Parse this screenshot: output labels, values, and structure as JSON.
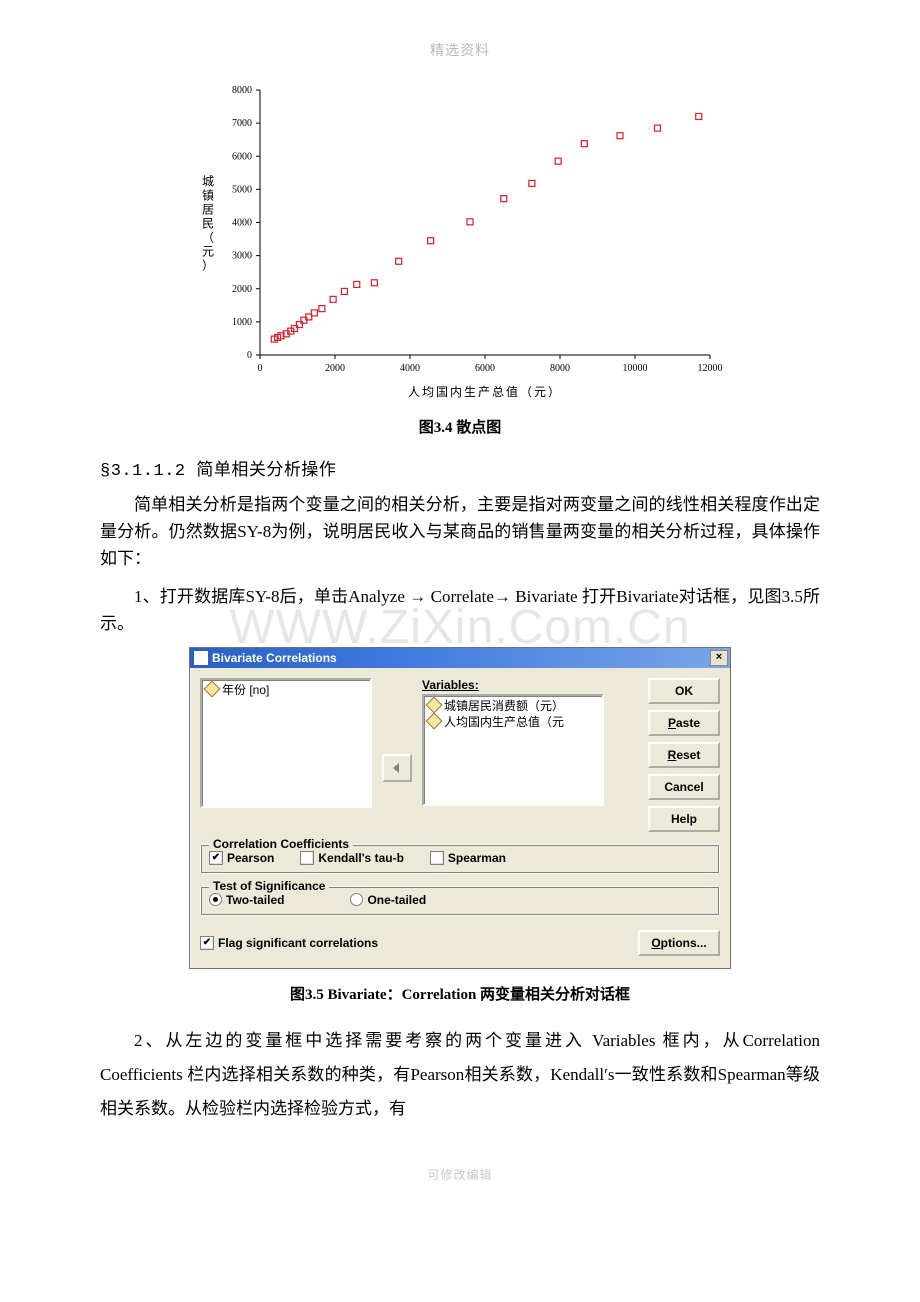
{
  "header": "精选资料",
  "footer": "可修改编辑",
  "watermark": "WWW.ZiXin.Com.Cn",
  "chart": {
    "type": "scatter",
    "xlabel": "人均国内生产总值（元）",
    "ylabel": "城镇居民（元）",
    "xlim": [
      0,
      12000
    ],
    "ylim": [
      0,
      8000
    ],
    "xticks": [
      0,
      2000,
      4000,
      6000,
      8000,
      10000,
      12000
    ],
    "yticks": [
      0,
      1000,
      2000,
      3000,
      4000,
      5000,
      6000,
      7000,
      8000
    ],
    "tick_fontsize": 10,
    "label_fontsize": 12,
    "marker": "square-open",
    "marker_color": "#d6202a",
    "marker_size": 6,
    "axis_color": "#000000",
    "background": "#ffffff",
    "points": [
      [
        380,
        480
      ],
      [
        470,
        530
      ],
      [
        560,
        580
      ],
      [
        700,
        640
      ],
      [
        820,
        720
      ],
      [
        920,
        800
      ],
      [
        1050,
        920
      ],
      [
        1170,
        1050
      ],
      [
        1300,
        1150
      ],
      [
        1450,
        1270
      ],
      [
        1650,
        1400
      ],
      [
        1950,
        1680
      ],
      [
        2250,
        1920
      ],
      [
        2580,
        2130
      ],
      [
        3050,
        2180
      ],
      [
        3700,
        2830
      ],
      [
        4550,
        3450
      ],
      [
        5600,
        4020
      ],
      [
        6500,
        4720
      ],
      [
        7250,
        5180
      ],
      [
        7950,
        5850
      ],
      [
        8650,
        6380
      ],
      [
        9600,
        6620
      ],
      [
        10600,
        6850
      ],
      [
        11700,
        7200
      ]
    ]
  },
  "caption_chart": "图3.4  散点图",
  "section_head": "§3.1.1.2  简单相关分析操作",
  "para1": "简单相关分析是指两个变量之间的相关分析，主要是指对两变量之间的线性相关程度作出定量分析。仍然数据SY-8为例，说明居民收入与某商品的销售量两变量的相关分析过程，具体操作如下：",
  "para2_a": "1、打开数据库SY-8后，单击Analyze → Correlate→ Bivariate 打开Bivariate对话框，见图3.5所示。",
  "dialog": {
    "title": "Bivariate Correlations",
    "left_list": [
      {
        "label": "年份 [no]"
      }
    ],
    "vars_label": "Variables:",
    "right_list": [
      {
        "label": "城镇居民消费额（元）"
      },
      {
        "label": "人均国内生产总值（元"
      }
    ],
    "buttons": {
      "ok": "OK",
      "paste": "Paste",
      "reset": "Reset",
      "cancel": "Cancel",
      "help": "Help",
      "options": "Options..."
    },
    "group_cc": "Correlation Coefficients",
    "cc_opts": {
      "pearson": "Pearson",
      "kendall": "Kendall's tau-b",
      "spearman": "Spearman"
    },
    "cc_checked": {
      "pearson": true,
      "kendall": false,
      "spearman": false
    },
    "group_sig": "Test of Significance",
    "sig_opts": {
      "two": "Two-tailed",
      "one": "One-tailed"
    },
    "sig_selected": "two",
    "flag_label": "Flag significant correlations",
    "flag_checked": true
  },
  "caption_dialog": "图3.5  Bivariate：Correlation 两变量相关分析对话框",
  "para3": "2、从左边的变量框中选择需要考察的两个变量进入 Variables 框内，从Correlation Coefficients 栏内选择相关系数的种类，有Pearson相关系数，Kendall′s一致性系数和Spearman等级相关系数。从检验栏内选择检验方式，有"
}
